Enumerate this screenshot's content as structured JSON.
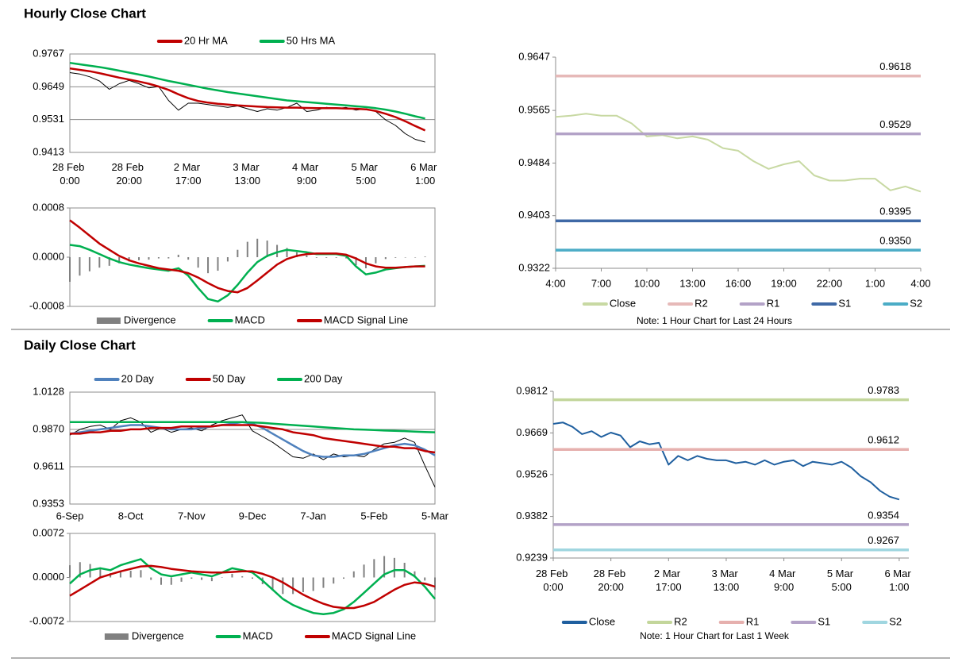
{
  "sections": [
    "Hourly Close Chart",
    "Daily Close Chart"
  ],
  "chart_data": [
    {
      "type": "line",
      "categories": [
        "28 Feb 0:00",
        null,
        null,
        null,
        null,
        null,
        "28 Feb 20:00",
        null,
        null,
        null,
        null,
        null,
        "2 Mar 17:00",
        null,
        null,
        null,
        null,
        null,
        "3 Mar 13:00",
        null,
        null,
        null,
        null,
        null,
        "4 Mar 9:00",
        null,
        null,
        null,
        null,
        null,
        "5 Mar 5:00",
        null,
        null,
        null,
        null,
        null,
        "6 Mar 1:00"
      ],
      "ylim": [
        0.9413,
        0.9767
      ],
      "yticks": [
        0.9413,
        0.9531,
        0.9649,
        0.9767
      ],
      "grid": true,
      "series": [
        {
          "color": "#000000",
          "values": [
            0.97,
            0.9695,
            0.9685,
            0.967,
            0.964,
            0.966,
            0.9672,
            0.966,
            0.9645,
            0.965,
            0.96,
            0.9565,
            0.959,
            0.959,
            0.9585,
            0.958,
            0.9575,
            0.958,
            0.957,
            0.956,
            0.957,
            0.9565,
            0.9575,
            0.959,
            0.956,
            0.9565,
            0.9575,
            0.957,
            0.9575,
            0.9565,
            0.957,
            0.956,
            0.953,
            0.951,
            0.948,
            0.946,
            0.945
          ]
        },
        {
          "name": "20 Hr MA",
          "color": "#c00000",
          "values": [
            0.9715,
            0.971,
            0.9705,
            0.9698,
            0.969,
            0.9682,
            0.9675,
            0.9668,
            0.966,
            0.965,
            0.9638,
            0.9622,
            0.9608,
            0.9598,
            0.9592,
            0.9588,
            0.9585,
            0.9582,
            0.958,
            0.9578,
            0.9576,
            0.9575,
            0.9574,
            0.9574,
            0.9573,
            0.9572,
            0.9572,
            0.9572,
            0.9571,
            0.957,
            0.9568,
            0.9562,
            0.9552,
            0.954,
            0.9525,
            0.9508,
            0.9492
          ]
        },
        {
          "name": "50 Hrs MA",
          "color": "#00b050",
          "values": [
            0.9735,
            0.973,
            0.9725,
            0.972,
            0.9714,
            0.9707,
            0.97,
            0.9693,
            0.9686,
            0.9678,
            0.967,
            0.9663,
            0.9656,
            0.9649,
            0.9642,
            0.9636,
            0.963,
            0.9625,
            0.962,
            0.9615,
            0.961,
            0.9605,
            0.96,
            0.9597,
            0.9594,
            0.9591,
            0.9588,
            0.9585,
            0.9582,
            0.9579,
            0.9576,
            0.9572,
            0.9567,
            0.956,
            0.9552,
            0.9543,
            0.9535
          ]
        }
      ]
    },
    {
      "type": "line",
      "ylim": [
        -0.0008,
        0.0008
      ],
      "yticks": [
        -0.0008,
        {
          "value": 0,
          "label": "0.0000"
        },
        0.0008
      ],
      "grid": false,
      "series": [
        {
          "name": "Divergence",
          "type": "bar",
          "color": "#808080",
          "values": [
            -0.0004,
            -0.0003,
            -0.00023,
            -0.00017,
            -0.00014,
            -0.0001,
            -7e-05,
            -5e-05,
            -4e-05,
            -2e-05,
            -2e-05,
            4e-05,
            -4e-05,
            -0.00017,
            -0.00026,
            -0.00022,
            -7e-05,
            0.00012,
            0.00025,
            0.0003,
            0.00027,
            0.0002,
            0.00015,
            8e-05,
            3e-05,
            -1e-05,
            -1e-05,
            -1e-05,
            -2e-05,
            -0.00013,
            -0.00018,
            -0.0001,
            -3e-05,
            -1e-05,
            0,
            0,
            1e-05
          ]
        },
        {
          "name": "MACD",
          "color": "#00b050",
          "values": [
            0.0002,
            0.00018,
            0.00012,
            5e-05,
            -2e-05,
            -8e-05,
            -0.00012,
            -0.00015,
            -0.00018,
            -0.0002,
            -0.00022,
            -0.00018,
            -0.0003,
            -0.0005,
            -0.00068,
            -0.00072,
            -0.00062,
            -0.00045,
            -0.00025,
            -8e-05,
            2e-05,
            8e-05,
            0.00012,
            0.0001,
            8e-05,
            5e-05,
            5e-05,
            5e-05,
            2e-05,
            -0.00015,
            -0.00028,
            -0.00025,
            -0.0002,
            -0.00018,
            -0.00016,
            -0.00015,
            -0.00014
          ]
        },
        {
          "name": "MACD Signal Line",
          "color": "#c00000",
          "values": [
            0.0006,
            0.00048,
            0.00035,
            0.00022,
            0.00012,
            2e-05,
            -5e-05,
            -0.0001,
            -0.00014,
            -0.00018,
            -0.0002,
            -0.00022,
            -0.00026,
            -0.00033,
            -0.00042,
            -0.0005,
            -0.00055,
            -0.00057,
            -0.0005,
            -0.00038,
            -0.00025,
            -0.00012,
            -3e-05,
            2e-05,
            5e-05,
            6e-05,
            6e-05,
            6e-05,
            4e-05,
            -2e-05,
            -0.0001,
            -0.00015,
            -0.00017,
            -0.00017,
            -0.00016,
            -0.00015,
            -0.00015
          ]
        }
      ]
    },
    {
      "type": "line",
      "categories": [
        "4:00",
        null,
        null,
        "7:00",
        null,
        null,
        "10:00",
        null,
        null,
        "13:00",
        null,
        null,
        "16:00",
        null,
        null,
        "19:00",
        null,
        null,
        "22:00",
        null,
        null,
        "1:00",
        null,
        null,
        "4:00"
      ],
      "ylim": [
        0.9322,
        0.9647
      ],
      "yticks": [
        0.9322,
        0.9403,
        0.9484,
        0.9565,
        0.9647
      ],
      "grid": false,
      "series": [
        {
          "name": "Close",
          "color": "#c8d9a3",
          "values": [
            0.9555,
            0.9557,
            0.956,
            0.9557,
            0.9557,
            0.9545,
            0.9525,
            0.9527,
            0.9522,
            0.9525,
            0.952,
            0.9507,
            0.9503,
            0.9487,
            0.9475,
            0.9482,
            0.9487,
            0.9465,
            0.9457,
            0.9457,
            0.946,
            0.946,
            0.9442,
            0.9448,
            0.944
          ]
        }
      ],
      "levels": [
        {
          "name": "R2",
          "color": "#e6b9b8",
          "value": 0.9618
        },
        {
          "name": "R1",
          "color": "#b3a2c7",
          "value": 0.9529
        },
        {
          "name": "S1",
          "color": "#3f69a6",
          "value": 0.9395
        },
        {
          "name": "S2",
          "color": "#4bacc6",
          "value": 0.935,
          "value_label": "0.9350"
        }
      ],
      "note": "Note: 1 Hour Chart for Last 24 Hours"
    },
    {
      "type": "line",
      "categories": [
        "6-Sep",
        null,
        null,
        null,
        null,
        null,
        "8-Oct",
        null,
        null,
        null,
        null,
        null,
        "7-Nov",
        null,
        null,
        null,
        null,
        null,
        "9-Dec",
        null,
        null,
        null,
        null,
        null,
        "7-Jan",
        null,
        null,
        null,
        null,
        null,
        "5-Feb",
        null,
        null,
        null,
        null,
        null,
        "5-Mar"
      ],
      "ylim": [
        0.9353,
        1.0128
      ],
      "yticks": [
        0.9353,
        0.9611,
        {
          "value": 0.987,
          "label": "0.9870"
        },
        1.0128
      ],
      "grid": true,
      "series": [
        {
          "color": "#000000",
          "values": [
            0.983,
            0.987,
            0.989,
            0.99,
            0.987,
            0.993,
            0.995,
            0.992,
            0.985,
            0.988,
            0.985,
            0.987,
            0.988,
            0.986,
            0.99,
            0.993,
            0.995,
            0.997,
            0.986,
            0.982,
            0.978,
            0.973,
            0.968,
            0.967,
            0.97,
            0.966,
            0.97,
            0.968,
            0.969,
            0.968,
            0.973,
            0.977,
            0.978,
            0.981,
            0.978,
            0.962,
            0.947
          ]
        },
        {
          "name": "20 Day",
          "color": "#4f81bd",
          "values": [
            0.984,
            0.985,
            0.986,
            0.987,
            0.988,
            0.989,
            0.99,
            0.99,
            0.989,
            0.988,
            0.987,
            0.987,
            0.987,
            0.988,
            0.989,
            0.99,
            0.991,
            0.992,
            0.991,
            0.988,
            0.984,
            0.98,
            0.976,
            0.972,
            0.969,
            0.968,
            0.968,
            0.969,
            0.969,
            0.97,
            0.972,
            0.974,
            0.976,
            0.977,
            0.976,
            0.973,
            0.969
          ]
        },
        {
          "name": "50 Day",
          "color": "#c00000",
          "values": [
            0.984,
            0.984,
            0.985,
            0.985,
            0.986,
            0.986,
            0.987,
            0.987,
            0.988,
            0.988,
            0.988,
            0.989,
            0.989,
            0.989,
            0.989,
            0.99,
            0.99,
            0.99,
            0.99,
            0.989,
            0.988,
            0.987,
            0.985,
            0.984,
            0.983,
            0.981,
            0.98,
            0.979,
            0.978,
            0.977,
            0.976,
            0.975,
            0.975,
            0.974,
            0.974,
            0.972,
            0.971
          ]
        },
        {
          "name": "200 Day",
          "color": "#00b050",
          "values": [
            0.992,
            0.992,
            0.992,
            0.992,
            0.992,
            0.992,
            0.992,
            0.992,
            0.992,
            0.992,
            0.992,
            0.992,
            0.992,
            0.992,
            0.992,
            0.992,
            0.992,
            0.992,
            0.9918,
            0.9915,
            0.991,
            0.9905,
            0.99,
            0.9895,
            0.989,
            0.9885,
            0.988,
            0.9875,
            0.987,
            0.9868,
            0.9865,
            0.9862,
            0.986,
            0.9858,
            0.9855,
            0.9852,
            0.985
          ]
        }
      ]
    },
    {
      "type": "line",
      "ylim": [
        -0.0072,
        0.0072
      ],
      "yticks": [
        -0.0072,
        {
          "value": 0,
          "label": "0.0000"
        },
        0.0072
      ],
      "grid": false,
      "series": [
        {
          "name": "Divergence",
          "type": "bar",
          "color": "#808080",
          "values": [
            0.002,
            0.0025,
            0.0022,
            0.0015,
            0.0007,
            0.001,
            0.0011,
            0.0012,
            -0.0004,
            -0.0012,
            -0.0012,
            -0.0007,
            -0.0002,
            -0.0004,
            -0.0006,
            0,
            0.0006,
            0.0002,
            -0.0002,
            -0.0011,
            -0.002,
            -0.0027,
            -0.0027,
            -0.0024,
            -0.0022,
            -0.0017,
            -0.001,
            -0.0002,
            0.001,
            0.0021,
            0.003,
            0.0035,
            0.0032,
            0.0024,
            0.001,
            -0.0005,
            -0.002
          ]
        },
        {
          "name": "MACD",
          "color": "#00b050",
          "values": [
            -0.001,
            0.0005,
            0.0012,
            0.0015,
            0.0012,
            0.002,
            0.0025,
            0.003,
            0.0015,
            0.0005,
            0.0002,
            0.0005,
            0.0008,
            0.0005,
            0.0002,
            0.0008,
            0.0015,
            0.0012,
            0.0008,
            -0.0005,
            -0.002,
            -0.0035,
            -0.0045,
            -0.0052,
            -0.0058,
            -0.006,
            -0.0058,
            -0.0052,
            -0.004,
            -0.0025,
            -0.001,
            0.0005,
            0.0012,
            0.0012,
            0.0002,
            -0.0015,
            -0.0035
          ]
        },
        {
          "name": "MACD Signal Line",
          "color": "#c00000",
          "values": [
            -0.003,
            -0.002,
            -0.001,
            0,
            0.0005,
            0.001,
            0.0014,
            0.0018,
            0.0019,
            0.0017,
            0.0014,
            0.0012,
            0.001,
            0.0009,
            0.0008,
            0.0008,
            0.0009,
            0.001,
            0.001,
            0.0006,
            0,
            -0.0008,
            -0.0018,
            -0.0028,
            -0.0036,
            -0.0043,
            -0.0048,
            -0.005,
            -0.005,
            -0.0046,
            -0.004,
            -0.003,
            -0.002,
            -0.0012,
            -0.0008,
            -0.001,
            -0.0015
          ]
        }
      ]
    },
    {
      "type": "line",
      "categories": [
        "28 Feb 0:00",
        null,
        null,
        null,
        null,
        null,
        "28 Feb 20:00",
        null,
        null,
        null,
        null,
        null,
        "2 Mar 17:00",
        null,
        null,
        null,
        null,
        null,
        "3 Mar 13:00",
        null,
        null,
        null,
        null,
        null,
        "4 Mar 9:00",
        null,
        null,
        null,
        null,
        null,
        "5 Mar 5:00",
        null,
        null,
        null,
        null,
        null,
        "6 Mar 1:00"
      ],
      "ylim": [
        0.9239,
        0.9812
      ],
      "yticks": [
        0.9239,
        0.9382,
        0.9526,
        0.9669,
        0.9812
      ],
      "grid": false,
      "series": [
        {
          "name": "Close",
          "color": "#1f5f9f",
          "values": [
            0.97,
            0.9705,
            0.969,
            0.9665,
            0.9675,
            0.9655,
            0.967,
            0.966,
            0.962,
            0.964,
            0.963,
            0.9635,
            0.956,
            0.959,
            0.9575,
            0.959,
            0.958,
            0.9575,
            0.9575,
            0.9565,
            0.957,
            0.956,
            0.9575,
            0.956,
            0.957,
            0.9575,
            0.9555,
            0.957,
            0.9565,
            0.956,
            0.957,
            0.955,
            0.952,
            0.95,
            0.947,
            0.945,
            0.944
          ]
        }
      ],
      "levels": [
        {
          "name": "R2",
          "color": "#c3d69b",
          "value": 0.9783
        },
        {
          "name": "R1",
          "color": "#e6b0ae",
          "value": 0.9612
        },
        {
          "name": "S1",
          "color": "#b3a2c7",
          "value": 0.9354
        },
        {
          "name": "S2",
          "color": "#a0d6e0",
          "value": 0.9267
        }
      ],
      "note": "Note: 1 Hour Chart for Last 1 Week"
    }
  ]
}
